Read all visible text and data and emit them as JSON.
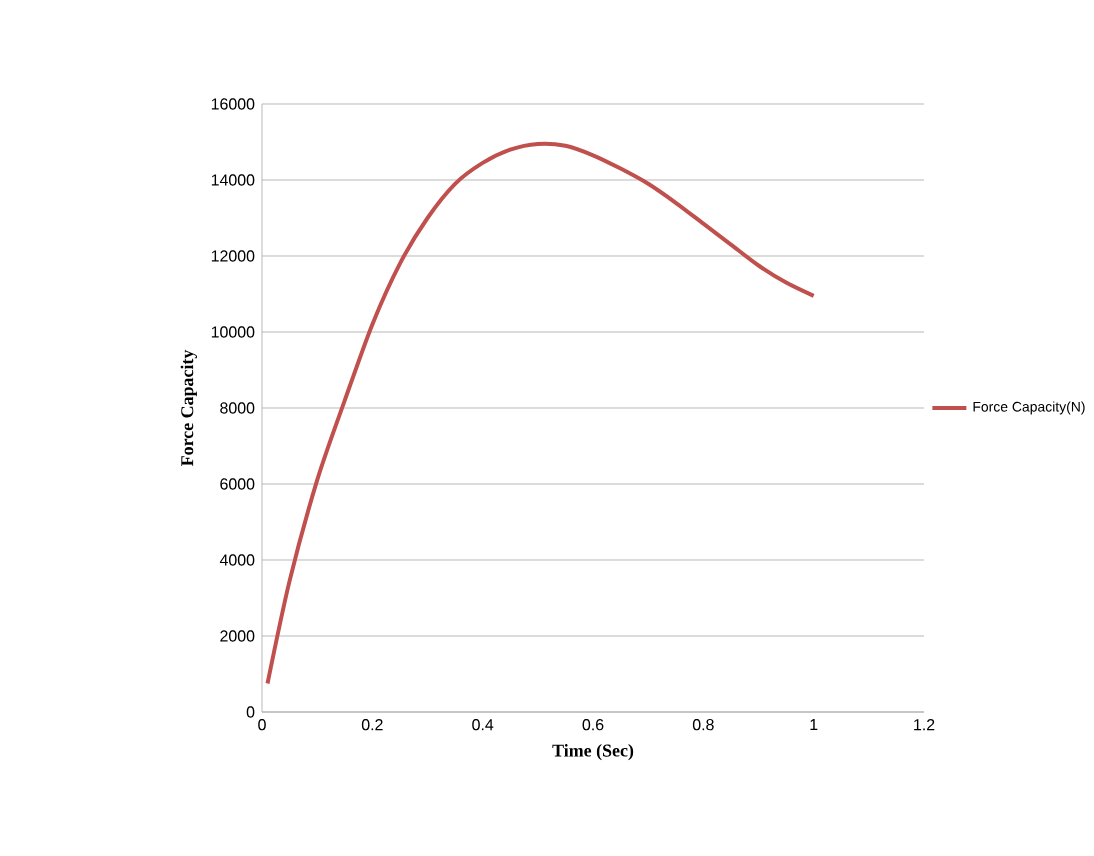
{
  "chart_data": {
    "type": "line",
    "xlabel": "Time (Sec)",
    "ylabel": "Force Capacity",
    "series": [
      {
        "name": "Force Capacity(N)",
        "color": "#c0504d",
        "x": [
          0.01,
          0.05,
          0.1,
          0.15,
          0.2,
          0.25,
          0.3,
          0.35,
          0.4,
          0.45,
          0.5,
          0.55,
          0.6,
          0.65,
          0.7,
          0.75,
          0.8,
          0.85,
          0.9,
          0.95,
          1.0
        ],
        "values": [
          750,
          3450,
          6100,
          8200,
          10200,
          11800,
          13000,
          13900,
          14450,
          14800,
          14950,
          14900,
          14650,
          14300,
          13900,
          13400,
          12850,
          12300,
          11750,
          11300,
          10950
        ]
      }
    ],
    "xlim": [
      0,
      1.2
    ],
    "xticks": [
      0,
      0.2,
      0.4,
      0.6,
      0.8,
      1,
      1.2
    ],
    "ylim": [
      0,
      16000
    ],
    "yticks": [
      0,
      2000,
      4000,
      6000,
      8000,
      10000,
      12000,
      14000,
      16000
    ],
    "grid": "y",
    "legend": "right",
    "marker": "none",
    "line_style": "solid"
  }
}
